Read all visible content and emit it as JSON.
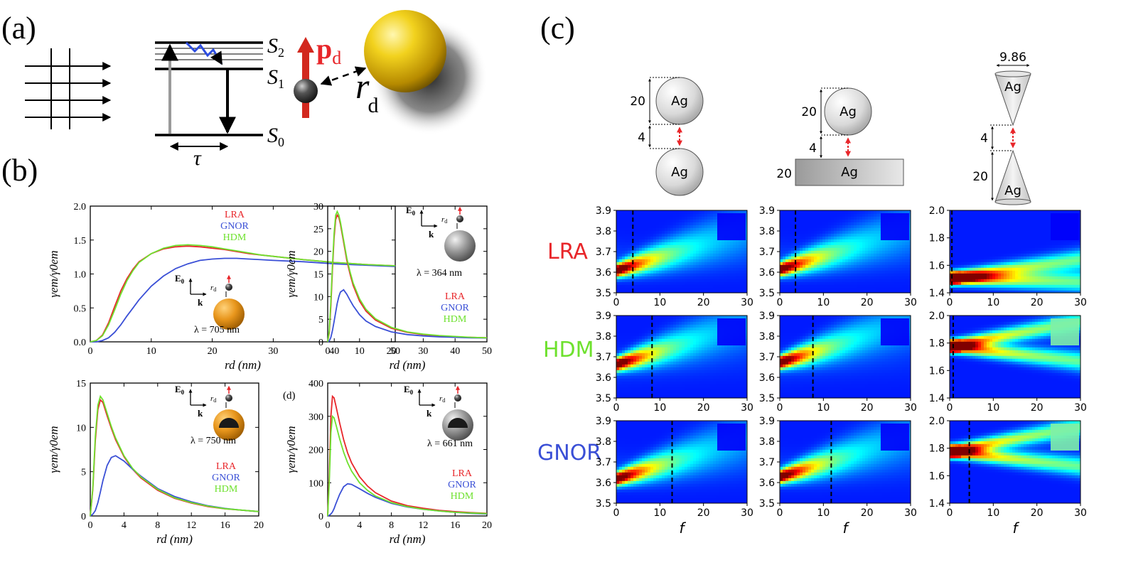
{
  "panel_labels": {
    "a": "(a)",
    "b": "(b)",
    "c": "(c)",
    "d": "(d)"
  },
  "diagram_a": {
    "levels": [
      "S",
      "S",
      "S"
    ],
    "level_subs": [
      "2",
      "1",
      "0"
    ],
    "tau": "τ",
    "dipole": "p",
    "dipole_sub": "d",
    "distance": "r",
    "distance_sub": "d"
  },
  "colors": {
    "LRA": "#e8262a",
    "GNOR": "#3a4fd6",
    "HDM": "#6ee12e"
  },
  "legend_labels": [
    "LRA",
    "GNOR",
    "HDM"
  ],
  "inset": {
    "field": "E",
    "field_sub": "0",
    "wave": "k",
    "rd": "r",
    "rd_sub": "d"
  },
  "c_row_labels": [
    "LRA",
    "HDM",
    "GNOR"
  ],
  "c_geometry": {
    "material": "Ag",
    "dims": {
      "d20": "20",
      "d4": "4",
      "d986": "9.86"
    }
  },
  "c_xlabel": "f",
  "chart_data": [
    {
      "type": "line",
      "id": "b1",
      "ylabel": "γem/γ0em",
      "xlabel": "rd (nm)",
      "xlim": [
        0,
        50
      ],
      "ylim": [
        0,
        2.0
      ],
      "xticks": [
        "0",
        "10",
        "20",
        "30",
        "40",
        "50"
      ],
      "yticks": [
        "0.0",
        "0.5",
        "1.0",
        "1.5",
        "2.0"
      ],
      "xtick_values": [
        0,
        10,
        20,
        30,
        40,
        50
      ],
      "ytick_values": [
        0,
        0.5,
        1.0,
        1.5,
        2.0
      ],
      "annotation": "λ = 705 nm",
      "x": [
        0,
        1,
        2,
        3,
        4,
        5,
        6,
        7,
        8,
        10,
        12,
        14,
        16,
        18,
        20,
        22,
        24,
        26,
        28,
        30,
        35,
        40,
        45,
        50
      ],
      "series": [
        {
          "name": "LRA",
          "values": [
            0,
            0.02,
            0.1,
            0.28,
            0.52,
            0.75,
            0.93,
            1.07,
            1.18,
            1.3,
            1.37,
            1.4,
            1.41,
            1.4,
            1.38,
            1.36,
            1.33,
            1.3,
            1.28,
            1.26,
            1.21,
            1.17,
            1.14,
            1.12
          ]
        },
        {
          "name": "GNOR",
          "values": [
            0,
            0.0,
            0.02,
            0.06,
            0.14,
            0.25,
            0.38,
            0.5,
            0.62,
            0.82,
            0.97,
            1.08,
            1.15,
            1.2,
            1.22,
            1.23,
            1.23,
            1.22,
            1.21,
            1.2,
            1.18,
            1.15,
            1.13,
            1.11
          ]
        },
        {
          "name": "HDM",
          "values": [
            0,
            0.02,
            0.09,
            0.25,
            0.47,
            0.7,
            0.9,
            1.05,
            1.17,
            1.3,
            1.38,
            1.42,
            1.43,
            1.42,
            1.4,
            1.37,
            1.34,
            1.31,
            1.28,
            1.26,
            1.21,
            1.17,
            1.14,
            1.12
          ]
        }
      ]
    },
    {
      "type": "line",
      "id": "b2",
      "ylabel": "γem/γ0em",
      "xlabel": "rd (nm)",
      "xlim": [
        0,
        50
      ],
      "ylim": [
        0,
        30
      ],
      "xticks": [
        "0",
        "10",
        "20",
        "30",
        "40",
        "50"
      ],
      "yticks": [
        "0",
        "5",
        "10",
        "15",
        "20",
        "25",
        "30"
      ],
      "xtick_values": [
        0,
        10,
        20,
        30,
        40,
        50
      ],
      "ytick_values": [
        0,
        5,
        10,
        15,
        20,
        25,
        30
      ],
      "annotation": "λ = 364 nm",
      "x": [
        0,
        0.5,
        1,
        1.5,
        2,
        2.5,
        3,
        3.5,
        4,
        5,
        6,
        7,
        8,
        10,
        12,
        15,
        20,
        25,
        30,
        35,
        40,
        45,
        50
      ],
      "series": [
        {
          "name": "LRA",
          "values": [
            0,
            2,
            8,
            16,
            23,
            27,
            28,
            27.5,
            26,
            22,
            18,
            15,
            12.5,
            9,
            6.8,
            4.8,
            3,
            2.1,
            1.6,
            1.3,
            1.1,
            1.0,
            0.9
          ]
        },
        {
          "name": "GNOR",
          "values": [
            0,
            0.2,
            1,
            2.5,
            4.5,
            6.5,
            8.5,
            10,
            11,
            11.5,
            10.5,
            9.2,
            8,
            6,
            4.6,
            3.4,
            2.2,
            1.6,
            1.3,
            1.1,
            1.0,
            0.9,
            0.85
          ]
        },
        {
          "name": "HDM",
          "values": [
            0,
            2.5,
            9,
            17,
            24,
            28,
            28.8,
            28,
            26.5,
            22.5,
            18.5,
            15.5,
            13,
            9.5,
            7.2,
            5.1,
            3.2,
            2.2,
            1.7,
            1.4,
            1.2,
            1.0,
            0.9
          ]
        }
      ]
    },
    {
      "type": "line",
      "id": "b3",
      "ylabel": "γem/γ0em",
      "xlabel": "rd (nm)",
      "xlim": [
        0,
        20
      ],
      "ylim": [
        0,
        15
      ],
      "xticks": [
        "0",
        "4",
        "8",
        "12",
        "16",
        "20"
      ],
      "yticks": [
        "0",
        "5",
        "10",
        "15"
      ],
      "xtick_values": [
        0,
        4,
        8,
        12,
        16,
        20
      ],
      "ytick_values": [
        0,
        5,
        10,
        15
      ],
      "annotation": "λ = 750 nm",
      "x": [
        0,
        0.3,
        0.6,
        0.9,
        1.2,
        1.5,
        2,
        2.5,
        3,
        4,
        5,
        6,
        8,
        10,
        12,
        14,
        16,
        18,
        20
      ],
      "series": [
        {
          "name": "LRA",
          "values": [
            0,
            3,
            8.5,
            12,
            13.1,
            12.8,
            11.3,
            9.9,
            8.6,
            6.7,
            5.3,
            4.3,
            2.9,
            2.0,
            1.45,
            1.05,
            0.8,
            0.65,
            0.5
          ]
        },
        {
          "name": "GNOR",
          "values": [
            0,
            0.2,
            0.6,
            1.5,
            2.7,
            4,
            5.7,
            6.6,
            6.8,
            6.2,
            5.3,
            4.5,
            3.1,
            2.2,
            1.6,
            1.15,
            0.85,
            0.65,
            0.5
          ]
        },
        {
          "name": "HDM",
          "values": [
            0,
            3.2,
            9,
            12.5,
            13.5,
            13.1,
            11.6,
            10.1,
            8.8,
            6.8,
            5.4,
            4.4,
            3.0,
            2.05,
            1.5,
            1.1,
            0.82,
            0.66,
            0.5
          ]
        }
      ]
    },
    {
      "type": "line",
      "id": "b4",
      "ylabel": "γem/γ0em",
      "xlabel": "rd (nm)",
      "xlim": [
        0,
        20
      ],
      "ylim": [
        0,
        400
      ],
      "xticks": [
        "0",
        "4",
        "8",
        "12",
        "16",
        "20"
      ],
      "yticks": [
        "0",
        "100",
        "200",
        "300",
        "400"
      ],
      "xtick_values": [
        0,
        4,
        8,
        12,
        16,
        20
      ],
      "ytick_values": [
        0,
        100,
        200,
        300,
        400
      ],
      "annotation": "λ = 661 nm",
      "x": [
        0,
        0.2,
        0.4,
        0.6,
        0.8,
        1.0,
        1.5,
        2,
        2.5,
        3,
        4,
        5,
        6,
        8,
        10,
        12,
        14,
        16,
        18,
        20
      ],
      "series": [
        {
          "name": "LRA",
          "values": [
            0,
            120,
            300,
            360,
            355,
            335,
            280,
            230,
            190,
            160,
            118,
            90,
            70,
            45,
            31,
            23,
            17,
            13,
            10,
            8
          ]
        },
        {
          "name": "GNOR",
          "values": [
            0,
            2,
            6,
            12,
            22,
            35,
            65,
            88,
            97,
            95,
            82,
            68,
            56,
            38,
            27,
            20,
            15,
            11,
            8,
            6
          ]
        },
        {
          "name": "HDM",
          "values": [
            0,
            100,
            250,
            300,
            295,
            278,
            232,
            192,
            160,
            135,
            100,
            77,
            60,
            40,
            28,
            20,
            15,
            11,
            9,
            7
          ]
        }
      ]
    },
    {
      "type": "heatmap",
      "id": "c-grid",
      "xlabel": "f",
      "xlim": [
        0,
        30
      ],
      "xticks": [
        "0",
        "10",
        "20",
        "30"
      ],
      "xtick_values": [
        0,
        10,
        20,
        30
      ],
      "panels": [
        {
          "row": "LRA",
          "col": 1,
          "ylim": [
            3.5,
            3.9
          ],
          "yticks": [
            "3.5",
            "3.6",
            "3.7",
            "3.8",
            "3.9"
          ],
          "ytick_values": [
            3.5,
            3.6,
            3.7,
            3.8,
            3.9
          ],
          "dash_f": 3.8,
          "peak_y": 3.61,
          "shape": "dimer"
        },
        {
          "row": "LRA",
          "col": 2,
          "ylim": [
            3.5,
            3.9
          ],
          "yticks": [
            "3.5",
            "3.6",
            "3.7",
            "3.8",
            "3.9"
          ],
          "ytick_values": [
            3.5,
            3.6,
            3.7,
            3.8,
            3.9
          ],
          "dash_f": 3.6,
          "peak_y": 3.615,
          "shape": "dimer"
        },
        {
          "row": "LRA",
          "col": 3,
          "ylim": [
            1.4,
            2.0
          ],
          "yticks": [
            "1.4",
            "1.6",
            "1.8",
            "2.0"
          ],
          "ytick_values": [
            1.4,
            1.6,
            1.8,
            2.0
          ],
          "dash_f": 0.5,
          "peak_y": 1.51,
          "shape": "fork"
        },
        {
          "row": "HDM",
          "col": 1,
          "ylim": [
            3.5,
            3.9
          ],
          "yticks": [
            "3.5",
            "3.6",
            "3.7",
            "3.8",
            "3.9"
          ],
          "ytick_values": [
            3.5,
            3.6,
            3.7,
            3.8,
            3.9
          ],
          "dash_f": 8.2,
          "peak_y": 3.665,
          "shape": "dimer"
        },
        {
          "row": "HDM",
          "col": 2,
          "ylim": [
            3.5,
            3.9
          ],
          "yticks": [
            "3.5",
            "3.6",
            "3.7",
            "3.8",
            "3.9"
          ],
          "ytick_values": [
            3.5,
            3.6,
            3.7,
            3.8,
            3.9
          ],
          "dash_f": 7.6,
          "peak_y": 3.675,
          "shape": "dimer"
        },
        {
          "row": "HDM",
          "col": 3,
          "ylim": [
            1.4,
            2.0
          ],
          "yticks": [
            "1.4",
            "1.6",
            "1.8",
            "2.0"
          ],
          "ytick_values": [
            1.4,
            1.6,
            1.8,
            2.0
          ],
          "dash_f": 0.8,
          "peak_y": 1.78,
          "shape": "fork"
        },
        {
          "row": "GNOR",
          "col": 1,
          "ylim": [
            3.5,
            3.9
          ],
          "yticks": [
            "3.5",
            "3.6",
            "3.7",
            "3.8",
            "3.9"
          ],
          "ytick_values": [
            3.5,
            3.6,
            3.7,
            3.8,
            3.9
          ],
          "dash_f": 12.8,
          "peak_y": 3.62,
          "shape": "dimer"
        },
        {
          "row": "GNOR",
          "col": 2,
          "ylim": [
            3.5,
            3.9
          ],
          "yticks": [
            "3.5",
            "3.6",
            "3.7",
            "3.8",
            "3.9"
          ],
          "ytick_values": [
            3.5,
            3.6,
            3.7,
            3.8,
            3.9
          ],
          "dash_f": 11.8,
          "peak_y": 3.63,
          "shape": "dimer"
        },
        {
          "row": "GNOR",
          "col": 3,
          "ylim": [
            1.4,
            2.0
          ],
          "yticks": [
            "1.4",
            "1.6",
            "1.8",
            "2.0"
          ],
          "ytick_values": [
            1.4,
            1.6,
            1.8,
            2.0
          ],
          "dash_f": 4.5,
          "peak_y": 1.78,
          "shape": "fork"
        }
      ]
    }
  ]
}
